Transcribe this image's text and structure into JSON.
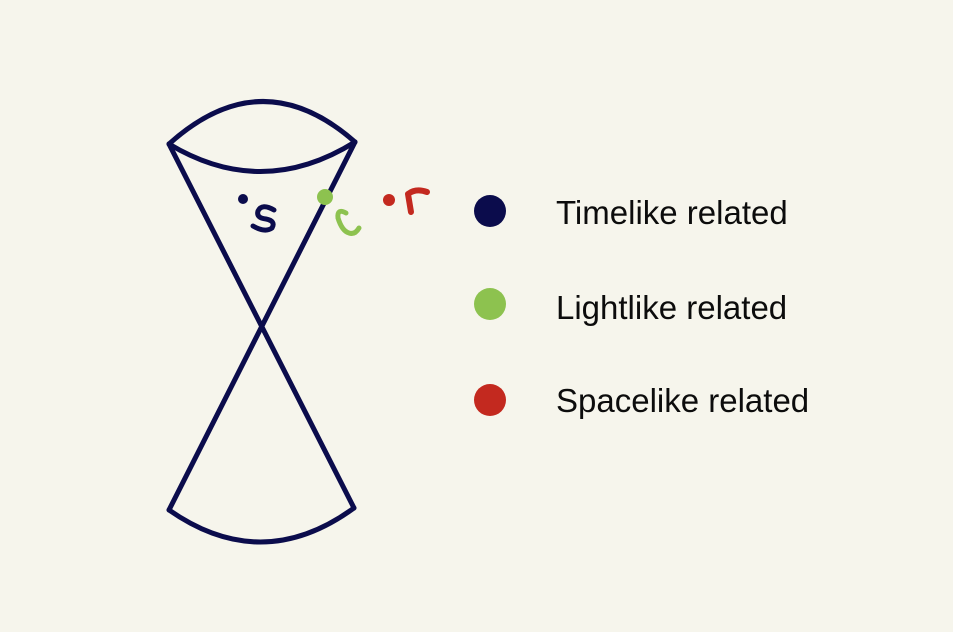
{
  "colors": {
    "background": "#f6f5ec",
    "timelike": "#0b0c4c",
    "lightlike": "#8dc24f",
    "spacelike": "#c3291f"
  },
  "points": {
    "s": {
      "label": "s",
      "relation": "timelike"
    },
    "q": {
      "label": "q",
      "relation": "lightlike"
    },
    "r": {
      "label": "r",
      "relation": "spacelike"
    }
  },
  "legend": {
    "items": [
      {
        "label": "Timelike related",
        "color": "#0b0c4c"
      },
      {
        "label": "Lightlike related",
        "color": "#8dc24f"
      },
      {
        "label": "Spacelike related",
        "color": "#c3291f"
      }
    ]
  }
}
